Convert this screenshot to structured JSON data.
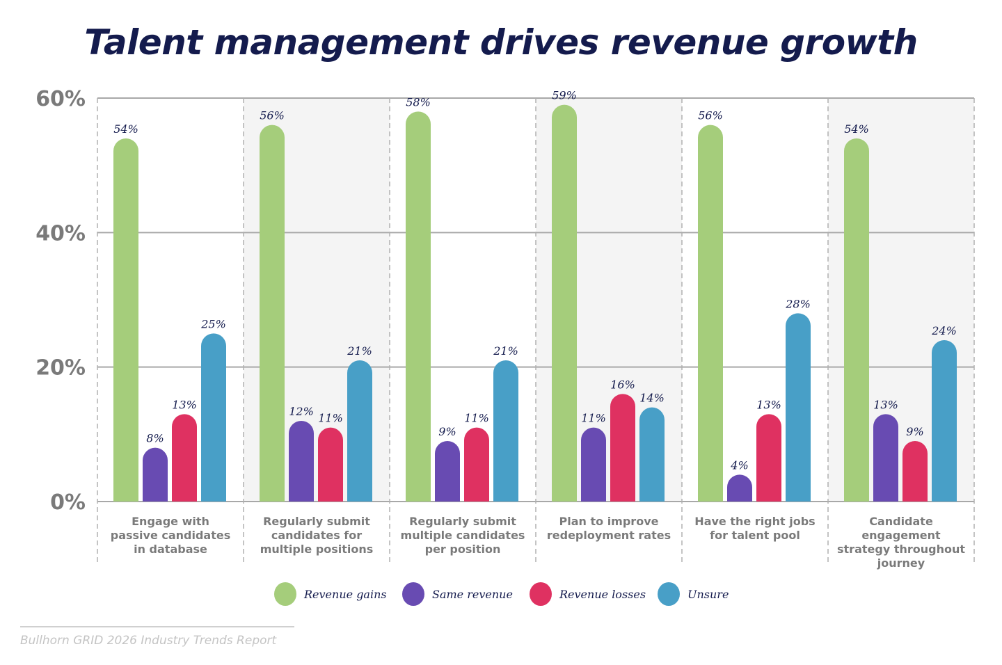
{
  "chart_data": {
    "type": "bar",
    "title": "Talent management drives revenue growth",
    "categories": [
      [
        "Engage with",
        "passive candidates",
        "in database"
      ],
      [
        "Regularly submit",
        "candidates for",
        "multiple positions"
      ],
      [
        "Regularly submit",
        "multiple candidates",
        "per position"
      ],
      [
        "Plan to improve",
        "redeployment rates"
      ],
      [
        "Have the right jobs",
        "for talent pool"
      ],
      [
        "Candidate",
        "engagement",
        "strategy throughout",
        "journey"
      ]
    ],
    "series": [
      {
        "name": "Revenue gains",
        "color": "#a5cd7b",
        "values": [
          54,
          56,
          58,
          59,
          56,
          54
        ]
      },
      {
        "name": "Same revenue",
        "color": "#684bb2",
        "values": [
          8,
          12,
          9,
          11,
          4,
          13
        ]
      },
      {
        "name": "Revenue losses",
        "color": "#df3161",
        "values": [
          13,
          11,
          11,
          16,
          13,
          9
        ]
      },
      {
        "name": "Unsure",
        "color": "#489fc7",
        "values": [
          25,
          21,
          21,
          14,
          28,
          24
        ]
      }
    ],
    "value_suffix": "%",
    "ylim": [
      0,
      60
    ],
    "yticks": [
      "0%",
      "20%",
      "40%",
      "60%"
    ],
    "grid": true,
    "legend_position": "bottom",
    "data_labels": true
  },
  "source": "Bullhorn GRID 2026 Industry Trends Report"
}
